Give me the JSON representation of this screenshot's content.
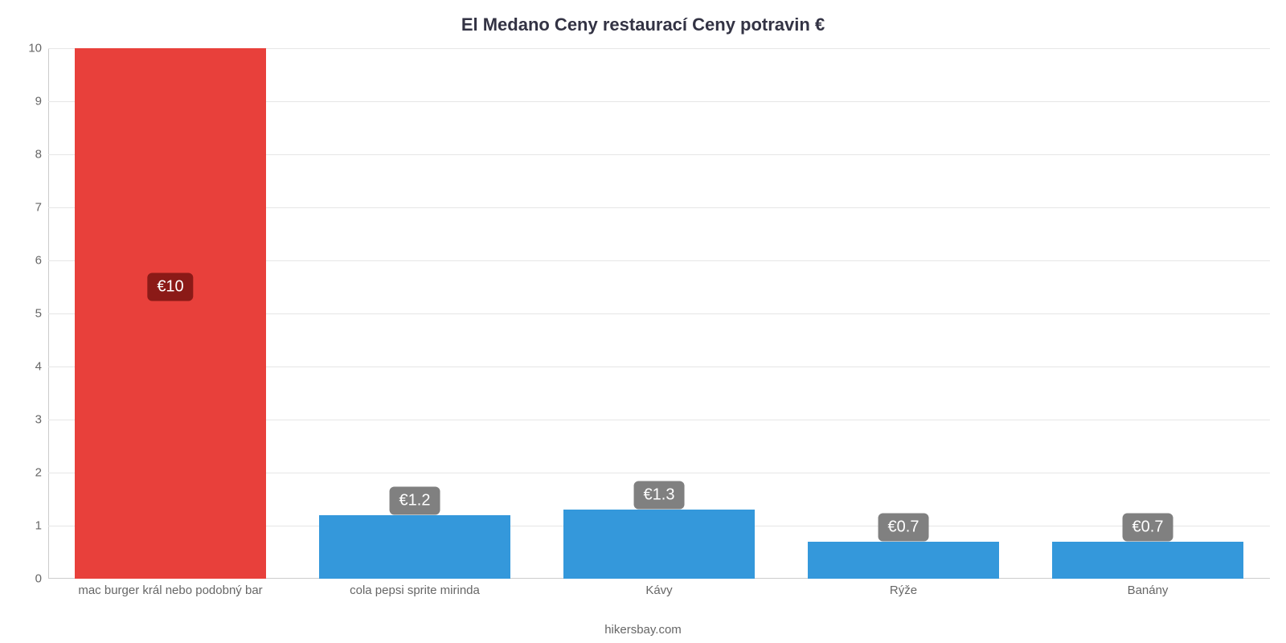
{
  "chart": {
    "type": "bar",
    "title": "El Medano Ceny restaurací Ceny potravin €",
    "title_fontsize": 22,
    "title_color": "#333344",
    "caption": "hikersbay.com",
    "caption_color": "#666666",
    "background_color": "#ffffff",
    "grid_color": "#e6e6e6",
    "axis_color": "#cccccc",
    "tick_label_color": "#666666",
    "tick_label_fontsize": 15,
    "ylim": [
      0,
      10
    ],
    "ytick_step": 1,
    "yticks": [
      "0",
      "1",
      "2",
      "3",
      "4",
      "5",
      "6",
      "7",
      "8",
      "9",
      "10"
    ],
    "categories": [
      "mac burger král nebo podobný bar",
      "cola pepsi sprite mirinda",
      "Kávy",
      "Rýže",
      "Banány"
    ],
    "values": [
      10,
      1.2,
      1.3,
      0.7,
      0.7
    ],
    "value_labels": [
      "€10",
      "€1.2",
      "€1.3",
      "€0.7",
      "€0.7"
    ],
    "bar_colors": [
      "#e8403b",
      "#3498db",
      "#3498db",
      "#3498db",
      "#3498db"
    ],
    "label_bg_colors": [
      "#8b1a17",
      "#808080",
      "#808080",
      "#808080",
      "#808080"
    ],
    "label_text_color": "#ffffff",
    "label_fontsize": 20,
    "bar_width_ratio": 0.78,
    "label_y_position": 0.55
  }
}
